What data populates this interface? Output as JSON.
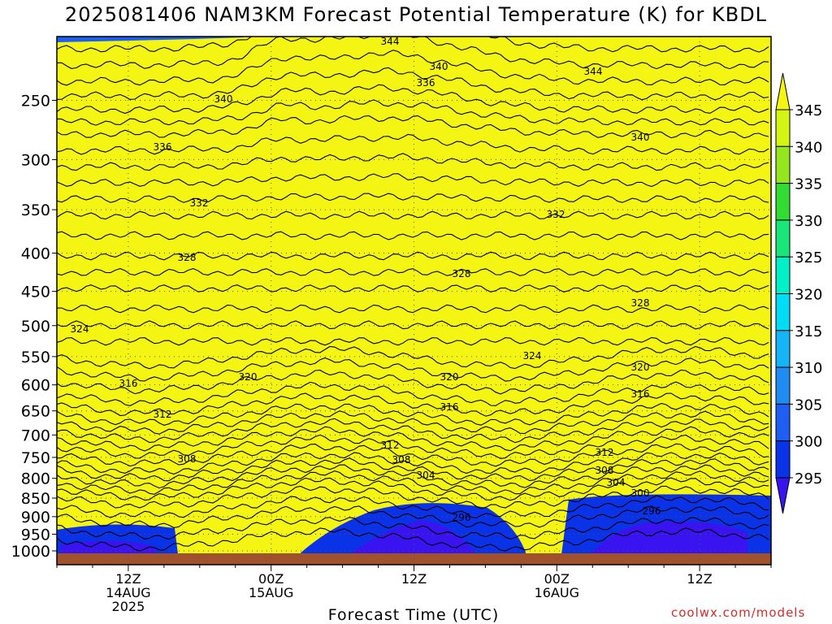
{
  "chart_data": {
    "type": "heatmap",
    "title": "2025081406 NAM3KM Forecast Potential Temperature (K) for KBDL",
    "xlabel": "Forecast Time (UTC)",
    "ylabel": "",
    "x_ticks": [
      {
        "hour": 6,
        "lines": [
          "12Z",
          "14AUG",
          "2025"
        ]
      },
      {
        "hour": 18,
        "lines": [
          "00Z",
          "15AUG"
        ]
      },
      {
        "hour": 30,
        "lines": [
          "12Z"
        ]
      },
      {
        "hour": 42,
        "lines": [
          "00Z",
          "16AUG"
        ]
      },
      {
        "hour": 54,
        "lines": [
          "12Z"
        ]
      }
    ],
    "xlim_hours": [
      0,
      60
    ],
    "y_ticks": [
      "250",
      "300",
      "350",
      "400",
      "450",
      "500",
      "550",
      "600",
      "650",
      "700",
      "750",
      "800",
      "850",
      "900",
      "950",
      "1000"
    ],
    "y_ticks_values": [
      250,
      300,
      350,
      400,
      450,
      500,
      550,
      600,
      650,
      700,
      750,
      800,
      850,
      900,
      950,
      1000
    ],
    "ylim_hPa": [
      200,
      1000
    ],
    "colorbar": {
      "levels": [
        295,
        300,
        305,
        310,
        315,
        320,
        325,
        330,
        335,
        340,
        345
      ],
      "labels": [
        "295",
        "300",
        "305",
        "310",
        "315",
        "320",
        "325",
        "330",
        "335",
        "340",
        "345"
      ],
      "colors": [
        "#3a14f0",
        "#0a32e6",
        "#1e5ef0",
        "#1e8cf0",
        "#14b4f5",
        "#00dcf5",
        "#00f0c8",
        "#18e678",
        "#32dc32",
        "#96e61e",
        "#d2f514",
        "#f5f514"
      ]
    },
    "contour_labels": [
      "344",
      "344",
      "340",
      "340",
      "340",
      "336",
      "336",
      "332",
      "332",
      "328",
      "328",
      "328",
      "324",
      "324",
      "320",
      "320",
      "320",
      "316",
      "316",
      "316",
      "312",
      "312",
      "312",
      "308",
      "308",
      "308",
      "304",
      "304",
      "300",
      "296",
      "296"
    ],
    "grid": true,
    "axis_note": "vertical axis is pressure (hPa) on a log scale, increasing downward"
  },
  "credit": "coolwx.com/models"
}
